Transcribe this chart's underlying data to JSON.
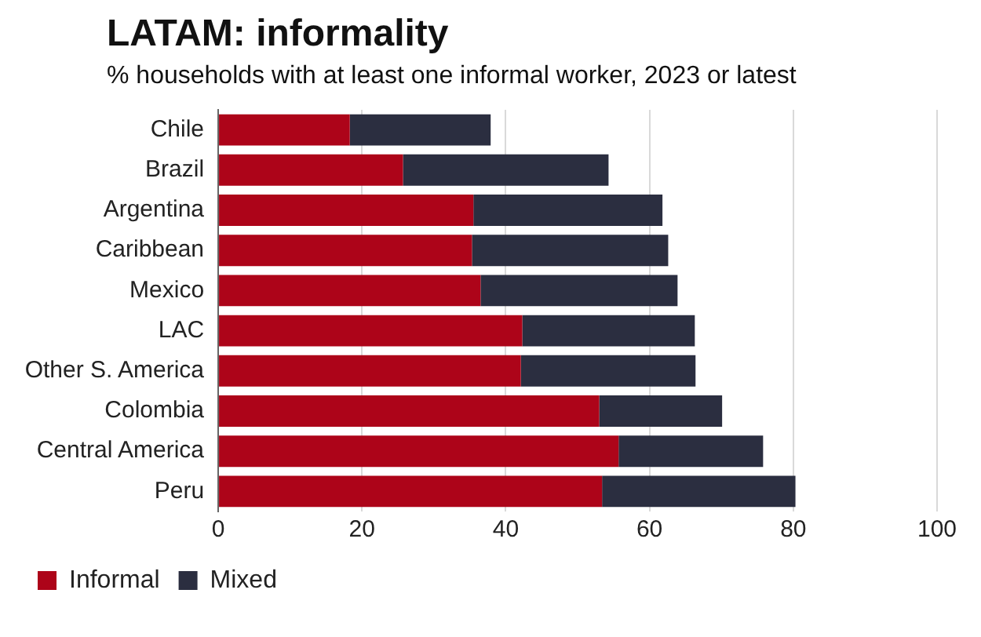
{
  "chart_data": {
    "type": "bar",
    "orientation": "horizontal",
    "stacked": true,
    "title": "LATAM: informality",
    "subtitle": "% households with at least one informal worker, 2023 or latest",
    "categories": [
      "Chile",
      "Brazil",
      "Argentina",
      "Caribbean",
      "Mexico",
      "LAC",
      "Other S. America",
      "Colombia",
      "Central America",
      "Peru"
    ],
    "series": [
      {
        "name": "Informal",
        "color": "#ad0419",
        "values": [
          18.3,
          25.7,
          35.5,
          35.3,
          36.5,
          42.3,
          42.1,
          53.0,
          55.7,
          53.4
        ]
      },
      {
        "name": "Mixed",
        "color": "#2b2e40",
        "values": [
          19.6,
          28.6,
          26.3,
          27.3,
          27.4,
          24.0,
          24.3,
          17.1,
          20.1,
          26.9
        ]
      }
    ],
    "xlim": [
      0,
      100
    ],
    "xticks": [
      0,
      20,
      40,
      60,
      80,
      100
    ],
    "grid": "x",
    "legend": "bottom"
  }
}
